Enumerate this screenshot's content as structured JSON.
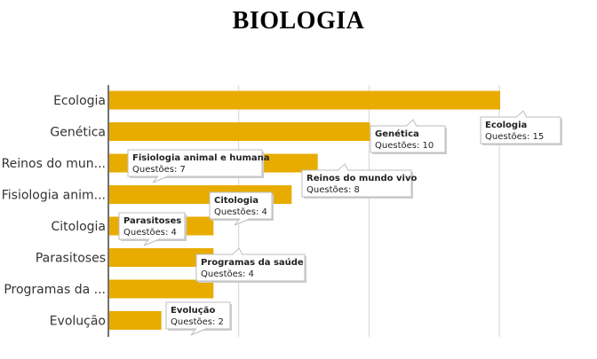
{
  "title": "BIOLOGIA",
  "chart_data": {
    "type": "bar",
    "orientation": "horizontal",
    "title": "BIOLOGIA",
    "categories": [
      "Ecologia",
      "Genética",
      "Reinos do mun...",
      "Fisiologia anim...",
      "Citologia",
      "Parasitoses",
      "Programas da ...",
      "Evolução"
    ],
    "values": [
      15,
      10,
      8,
      7,
      4,
      4,
      4,
      2
    ],
    "xlim": [
      0,
      16
    ],
    "grid": true,
    "bar_color": "#E8AC00",
    "grid_color": "#d6d6d6",
    "tooltips": [
      {
        "title": "Ecologia",
        "text": "Questões: 15"
      },
      {
        "title": "Genética",
        "text": "Questões: 10"
      },
      {
        "title": "Reinos do mundo vivo",
        "text": "Questões: 8"
      },
      {
        "title": "Fisiologia animal e humana",
        "text": "Questões: 7"
      },
      {
        "title": "Citologia",
        "text": "Questões: 4"
      },
      {
        "title": "Parasitoses",
        "text": "Questões: 4"
      },
      {
        "title": "Programas da saúde",
        "text": "Questões: 4"
      },
      {
        "title": "Evolução",
        "text": "Questões: 2"
      }
    ]
  }
}
